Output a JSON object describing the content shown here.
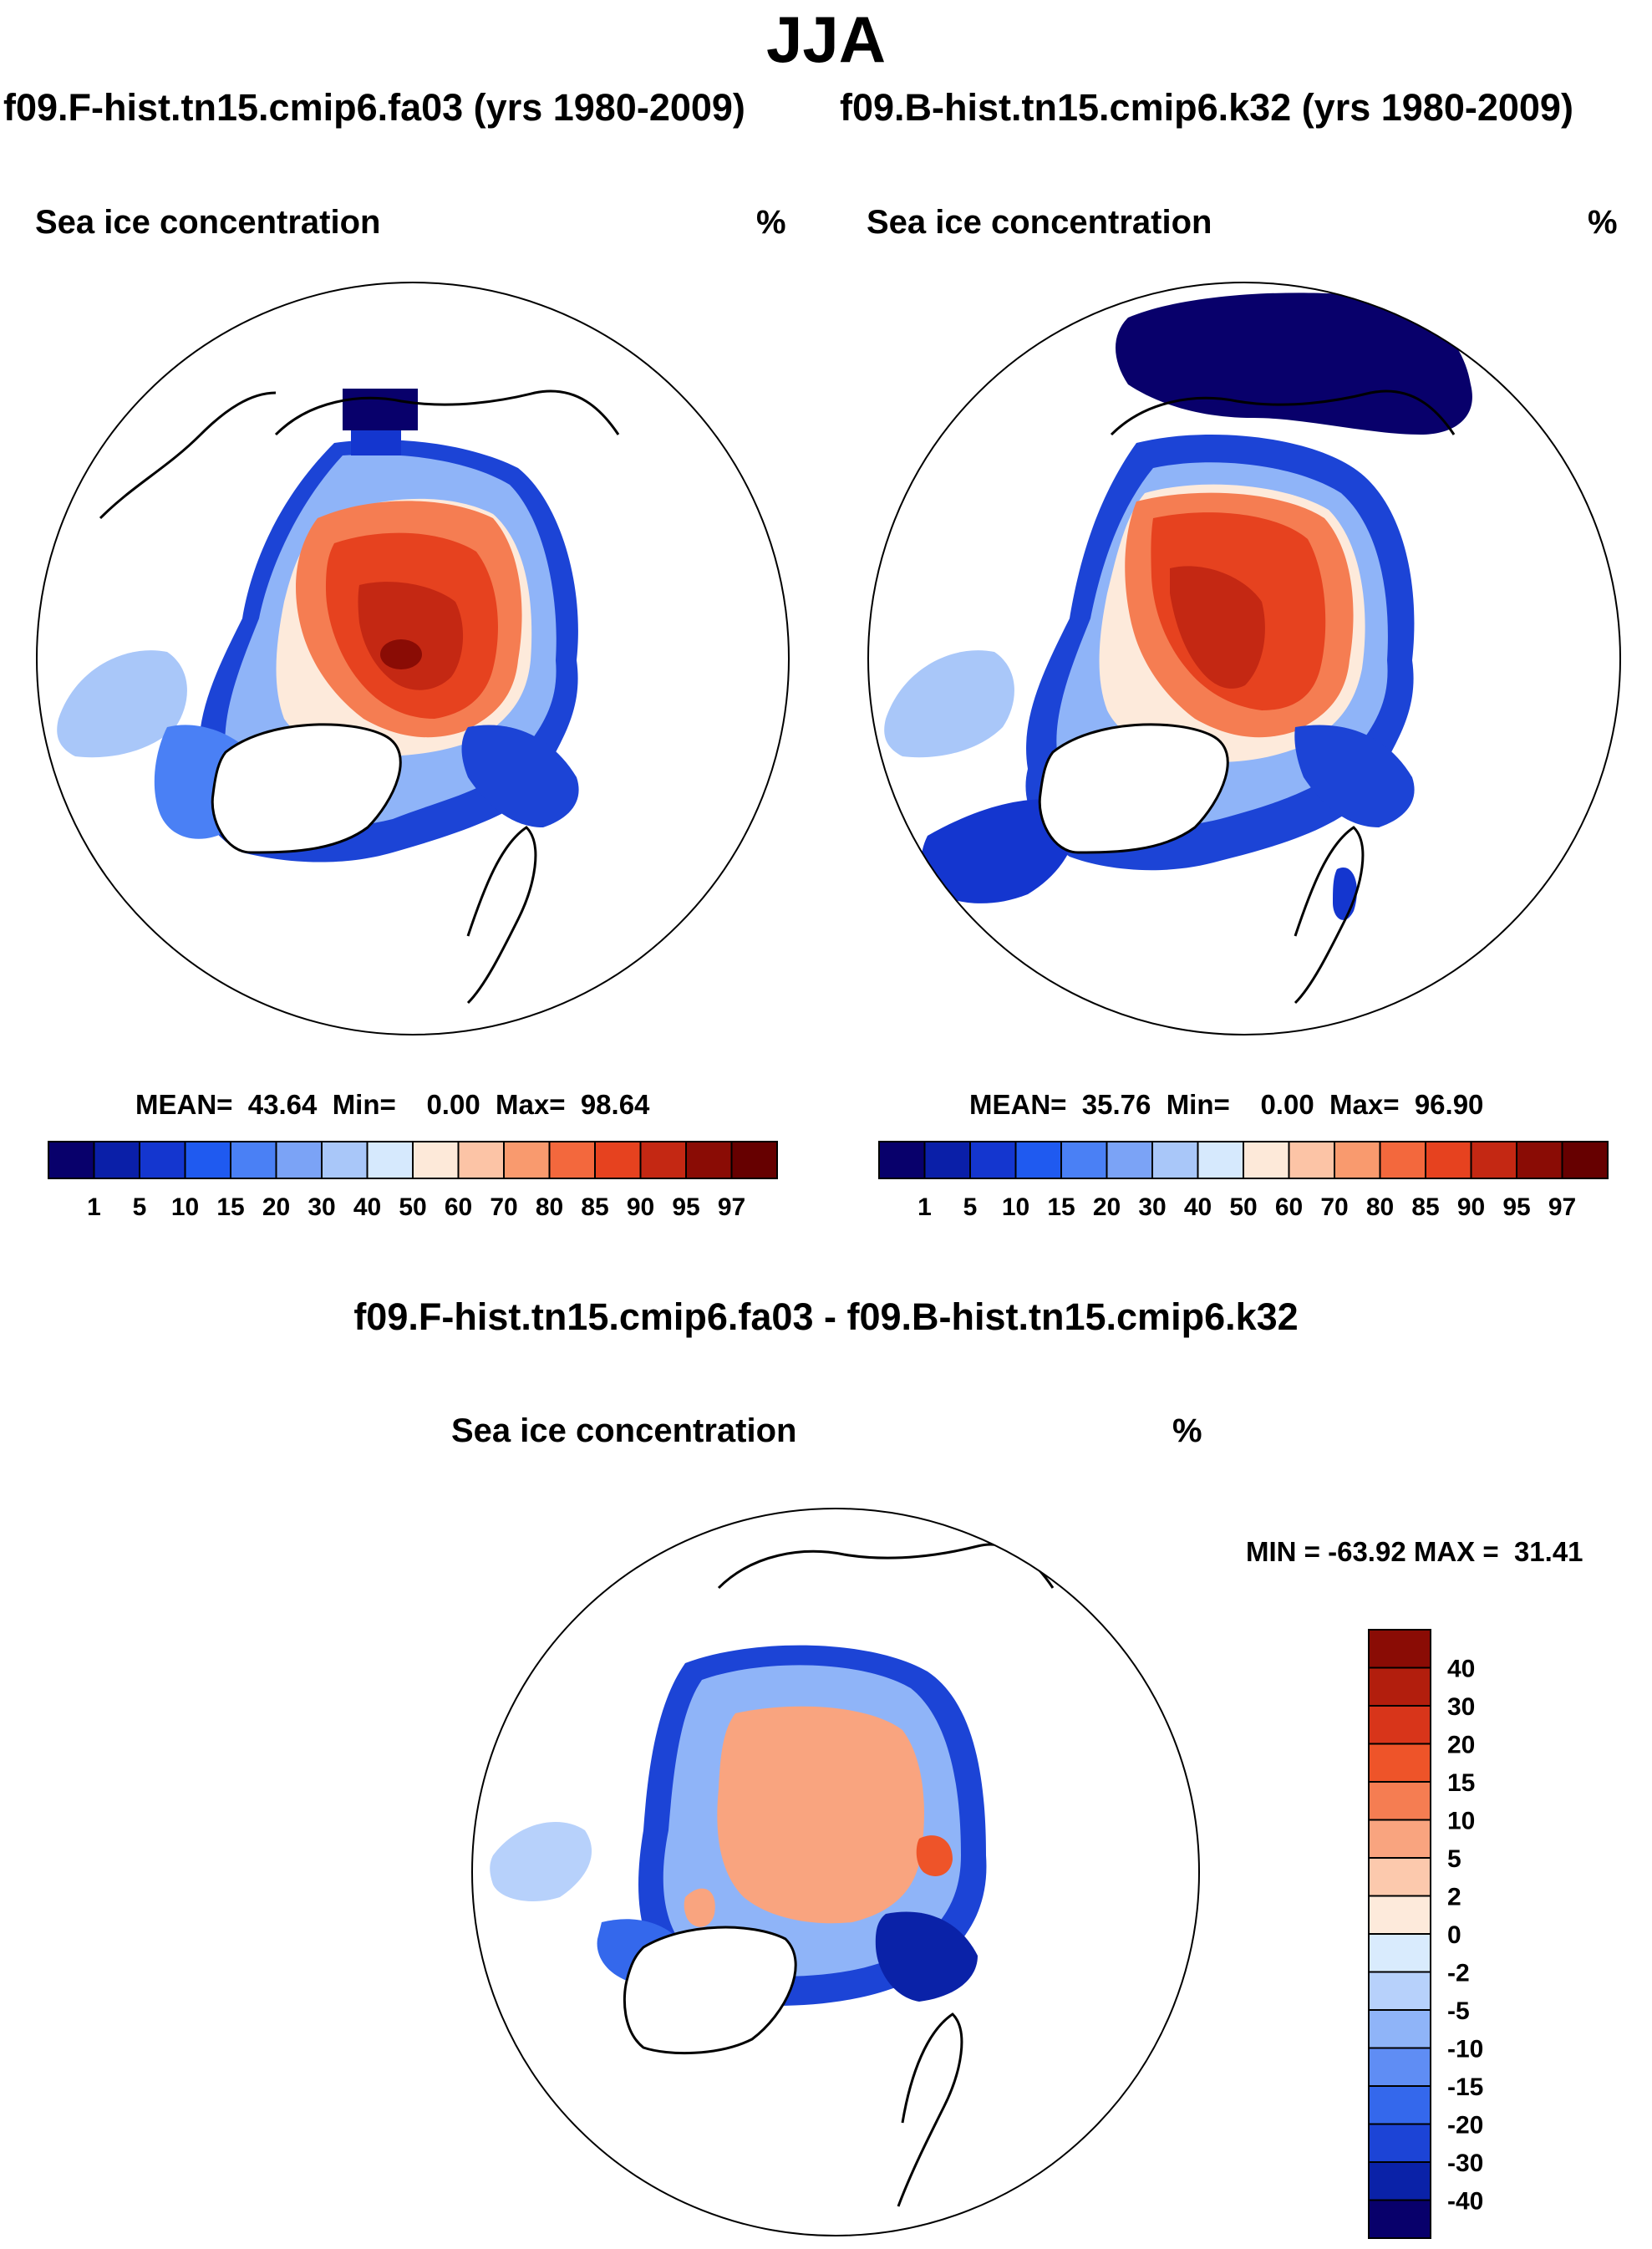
{
  "figure": {
    "season": "JJA",
    "left_panel": {
      "title": "f09.F-hist.tn15.cmip6.fa03 (yrs 1980-2009)",
      "variable": "Sea ice concentration",
      "unit": "%",
      "stats_text": "MEAN=  43.64  Min=    0.00  Max=  98.64"
    },
    "right_panel": {
      "title": "f09.B-hist.tn15.cmip6.k32 (yrs 1980-2009)",
      "variable": "Sea ice concentration",
      "unit": "%",
      "stats_text": "MEAN=  35.76  Min=    0.00  Max=  96.90"
    },
    "diff_panel": {
      "title": "f09.F-hist.tn15.cmip6.fa03 - f09.B-hist.tn15.cmip6.k32",
      "variable": "Sea ice concentration",
      "unit": "%",
      "minmax_text": "MIN = -63.92 MAX =  31.41"
    }
  },
  "chart_data": [
    {
      "type": "map",
      "projection": "north polar stereographic",
      "title": "f09.F-hist.tn15.cmip6.fa03 (yrs 1980-2009)",
      "variable": "Sea ice concentration",
      "unit": "%",
      "mean": 43.64,
      "min": 0.0,
      "max": 98.64,
      "colorbar_levels": [
        "1",
        "5",
        "10",
        "15",
        "20",
        "30",
        "40",
        "50",
        "60",
        "70",
        "80",
        "85",
        "90",
        "95",
        "97"
      ],
      "colorbar_colors": [
        "#08006b",
        "#0a1fa8",
        "#1436cf",
        "#1f5af0",
        "#4a80f5",
        "#7ba3f6",
        "#a9c7f9",
        "#d6e9fd",
        "#fde9d9",
        "#fcc4a6",
        "#f99a6e",
        "#f3683d",
        "#e6421f",
        "#c42813",
        "#8a0c05",
        "#660000"
      ]
    },
    {
      "type": "map",
      "projection": "north polar stereographic",
      "title": "f09.B-hist.tn15.cmip6.k32 (yrs 1980-2009)",
      "variable": "Sea ice concentration",
      "unit": "%",
      "mean": 35.76,
      "min": 0.0,
      "max": 96.9,
      "colorbar_levels": [
        "1",
        "5",
        "10",
        "15",
        "20",
        "30",
        "40",
        "50",
        "60",
        "70",
        "80",
        "85",
        "90",
        "95",
        "97"
      ],
      "colorbar_colors": [
        "#08006b",
        "#0a1fa8",
        "#1436cf",
        "#1f5af0",
        "#4a80f5",
        "#7ba3f6",
        "#a9c7f9",
        "#d6e9fd",
        "#fde9d9",
        "#fcc4a6",
        "#f99a6e",
        "#f3683d",
        "#e6421f",
        "#c42813",
        "#8a0c05",
        "#660000"
      ]
    },
    {
      "type": "map",
      "projection": "north polar stereographic",
      "title": "f09.F-hist.tn15.cmip6.fa03 - f09.B-hist.tn15.cmip6.k32",
      "variable": "Sea ice concentration",
      "unit": "%",
      "min": -63.92,
      "max": 31.41,
      "colorbar_levels": [
        "40",
        "30",
        "20",
        "15",
        "10",
        "5",
        "2",
        "0",
        "-2",
        "-5",
        "-10",
        "-15",
        "-20",
        "-30",
        "-40"
      ],
      "colorbar_colors": [
        "#8a0c05",
        "#b21e0d",
        "#d8351a",
        "#ee5429",
        "#f57d52",
        "#f9a47f",
        "#fcc9ad",
        "#fdeadb",
        "#d9ebfd",
        "#b7d1fb",
        "#8fb4f8",
        "#5f8df4",
        "#3468ec",
        "#1c44d6",
        "#0a22a8",
        "#08006b"
      ]
    }
  ]
}
